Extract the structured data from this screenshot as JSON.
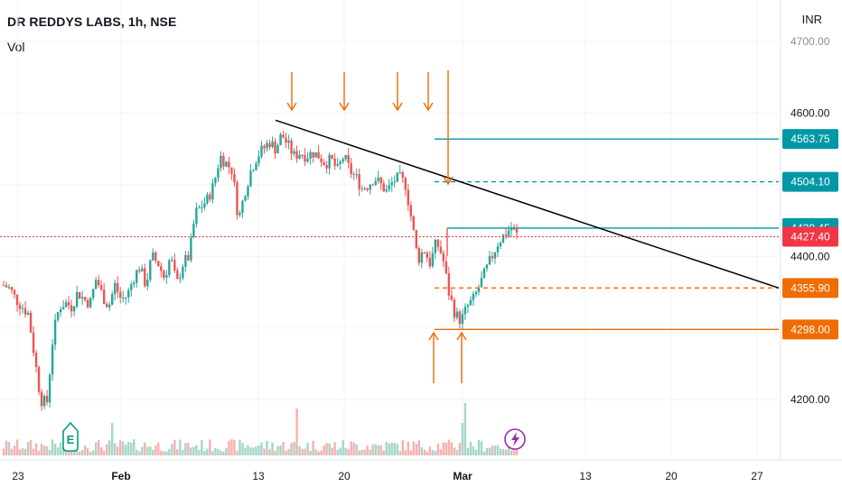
{
  "header": {
    "title": "DR REDDYS LABS, 1h, NSE",
    "volume_label": "Vol"
  },
  "currency": "INR",
  "top_partial_tick": "4700.00",
  "colors": {
    "up": "#26a69a",
    "down": "#ef5350",
    "teal_line": "#0097a7",
    "orange_line": "#ef6c00",
    "price_tag": "#f23645",
    "trendline": "#000000",
    "earnings_badge": "#089981",
    "split_badge": "#9c27b0"
  },
  "icons": {
    "earnings": "earnings-badge-icon",
    "dividend": "lightning-badge-icon"
  },
  "chart_data": {
    "type": "candlestick",
    "title": "DR REDDYS LABS, 1h, NSE",
    "ylim": [
      4160,
      4720
    ],
    "y_ticks": [
      "4600.00",
      "4400.00",
      "4200.00"
    ],
    "x_ticks": [
      "23",
      "Feb",
      "13",
      "20",
      "Mar",
      "13",
      "20",
      "27"
    ],
    "last_price": 4427.4,
    "levels": [
      {
        "label": "4563.75",
        "value": 4563.75,
        "color": "teal",
        "style": "solid"
      },
      {
        "label": "4504.10",
        "value": 4504.1,
        "color": "teal",
        "style": "dashed"
      },
      {
        "label": "4439.45",
        "value": 4439.45,
        "color": "teal",
        "style": "solid"
      },
      {
        "label": "4427.40",
        "value": 4427.4,
        "color": "red",
        "style": "dotted"
      },
      {
        "label": "4355.90",
        "value": 4355.9,
        "color": "orange",
        "style": "dashed"
      },
      {
        "label": "4298.00",
        "value": 4298.0,
        "color": "orange",
        "style": "solid"
      }
    ],
    "trendline": {
      "from": 4590,
      "to": 4355.9
    },
    "close_path": [
      4360,
      4355,
      4340,
      4330,
      4320,
      4260,
      4200,
      4195,
      4290,
      4330,
      4335,
      4330,
      4350,
      4340,
      4335,
      4370,
      4345,
      4330,
      4360,
      4340,
      4345,
      4370,
      4385,
      4360,
      4400,
      4390,
      4370,
      4400,
      4360,
      4390,
      4400,
      4460,
      4470,
      4480,
      4500,
      4540,
      4530,
      4520,
      4450,
      4490,
      4520,
      4540,
      4550,
      4560,
      4550,
      4570,
      4555,
      4540,
      4545,
      4540,
      4545,
      4540,
      4530,
      4535,
      4520,
      4540,
      4520,
      4510,
      4495,
      4500,
      4510,
      4500,
      4490,
      4505,
      4510,
      4500,
      4450,
      4395,
      4410,
      4390,
      4420,
      4400,
      4350,
      4320,
      4310,
      4330,
      4340,
      4360,
      4380,
      4400,
      4420,
      4430,
      4440,
      4430
    ],
    "series": [
      {
        "values_source": "close_path"
      }
    ]
  },
  "bottom_tabs": []
}
